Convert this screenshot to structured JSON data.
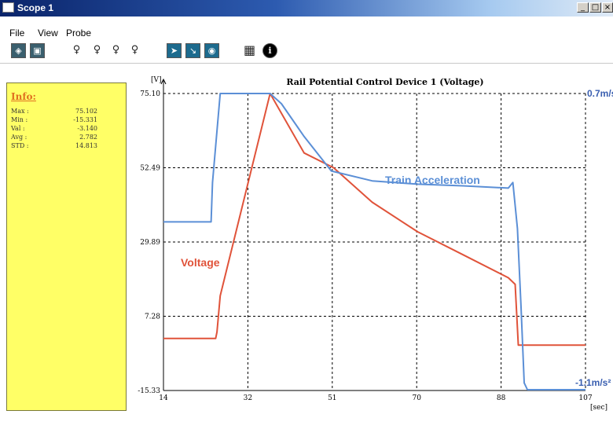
{
  "window": {
    "title": "Scope 1",
    "minimize": "_",
    "maximize": "□",
    "close": "×"
  },
  "menu": [
    "File",
    "View",
    "Probe"
  ],
  "toolbar": {
    "buttons": [
      {
        "icon": "scope-layout-icon",
        "glyph": "◈"
      },
      {
        "icon": "display-icon",
        "glyph": "▣"
      },
      {
        "icon": "probe-icon",
        "glyph": "♀"
      },
      {
        "icon": "probe-x-icon",
        "glyph": "♀"
      },
      {
        "icon": "probe-multi-icon",
        "glyph": "♀"
      },
      {
        "icon": "probe-remove-icon",
        "glyph": "♀"
      },
      {
        "icon": "select-arrow-icon",
        "glyph": "➤"
      },
      {
        "icon": "measure-arrow-icon",
        "glyph": "↘"
      },
      {
        "icon": "view-eye-icon",
        "glyph": "◉"
      },
      {
        "icon": "grid-icon",
        "glyph": "▦"
      },
      {
        "icon": "info-icon",
        "glyph": "i"
      }
    ]
  },
  "info": {
    "title": "Info:",
    "rows": [
      {
        "label": "Max :",
        "value": "75.102"
      },
      {
        "label": "Min :",
        "value": "-15.331"
      },
      {
        "label": "Val :",
        "value": "-3.140"
      },
      {
        "label": "Avg :",
        "value": "2.782"
      },
      {
        "label": "STD :",
        "value": "14.813"
      }
    ]
  },
  "chart_data": {
    "type": "line",
    "title": "Rail Potential Control Device 1  (Voltage)",
    "ylabel": "[V]",
    "xlabel": "[sec]",
    "xlim": [
      14,
      107
    ],
    "ylim": [
      -15.33,
      75.1
    ],
    "x_ticks": [
      "14",
      "32",
      "51",
      "70",
      "88",
      "107"
    ],
    "x_tick_values": [
      14,
      32.6,
      51.2,
      69.8,
      88.4,
      107
    ],
    "y_ticks": [
      "75.10",
      "52.49",
      "29.89",
      "7.28",
      "-15.33"
    ],
    "y_tick_values": [
      75.1,
      52.49,
      29.89,
      7.28,
      -15.33
    ],
    "grid": true,
    "right_axis_labels": {
      "top": "0.7m/s²",
      "bottom": "-1.1m/s²"
    },
    "series": [
      {
        "name": "Voltage",
        "color": "#e0533a",
        "x": [
          14,
          25.5,
          25.8,
          26.5,
          37.5,
          45,
          51.5,
          60,
          70,
          80,
          90,
          91.5,
          92.2,
          100,
          107
        ],
        "y": [
          0.5,
          0.5,
          2.5,
          13.5,
          75.1,
          57,
          52.5,
          42,
          33,
          26,
          19,
          17,
          -1.5,
          -1.5,
          -1.5
        ]
      },
      {
        "name": "Train Acceleration",
        "color": "#5b8fd6",
        "x": [
          14,
          24.5,
          24.8,
          26.5,
          37.5,
          40,
          45,
          51,
          60,
          70,
          80,
          90,
          91,
          92,
          92.8,
          93.5,
          94.2,
          96,
          107
        ],
        "y": [
          36,
          36,
          48,
          75.1,
          75.1,
          72,
          62,
          51.5,
          48.5,
          47.5,
          47,
          46.3,
          48,
          34,
          10,
          -13,
          -15.1,
          -15.1,
          -15.1
        ]
      }
    ]
  }
}
